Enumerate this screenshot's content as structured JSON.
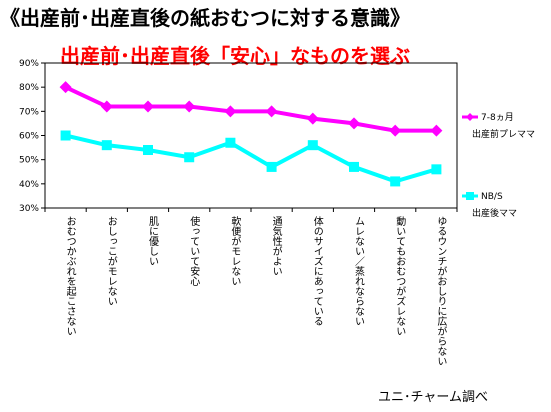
{
  "title": "《出産前･出産直後の紙おむつに対する意識》",
  "subtitle": "出産前･出産直後「安心」なものを選ぶ",
  "source": "ユニ･チャーム調べ",
  "chart_data": {
    "type": "line",
    "categories": [
      "おむつかぶれを起こさない",
      "おしっこがモレない",
      "肌に優しい",
      "使っていて安心",
      "軟便がモレない",
      "通気性がよい",
      "体のサイズにあっている",
      "ムレない／蒸れならない",
      "動いてもおむつがズレない",
      "ゆるウンチがおしりに広がらない"
    ],
    "series": [
      {
        "name": "7-8ヵ月",
        "subname": "出産前プレママ",
        "color": "#ff00ff",
        "marker": "diamond",
        "values": [
          80,
          72,
          72,
          72,
          70,
          70,
          67,
          65,
          62,
          62
        ]
      },
      {
        "name": "NB/S",
        "subname": "出産後ママ",
        "color": "#00ffff",
        "marker": "square",
        "values": [
          60,
          56,
          54,
          51,
          57,
          47,
          56,
          47,
          41,
          46
        ]
      }
    ],
    "yticks": [
      "30%",
      "40%",
      "50%",
      "60%",
      "70%",
      "80%",
      "90%"
    ],
    "ylim": [
      30,
      90
    ],
    "grid": false,
    "legend_position": "right"
  }
}
